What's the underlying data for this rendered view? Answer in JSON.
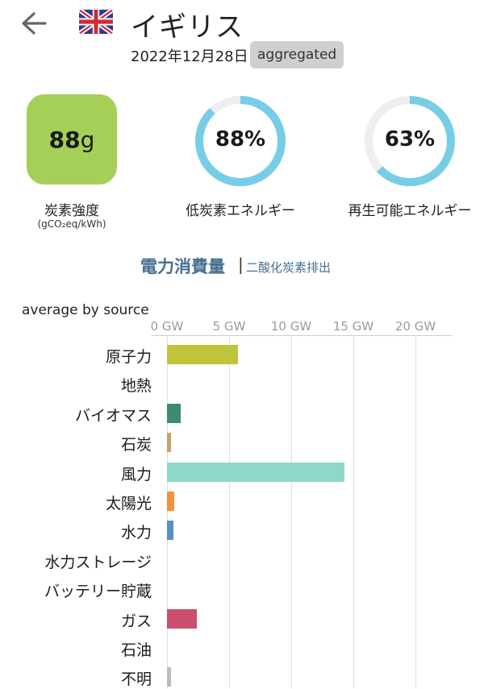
{
  "header": {
    "country": "イギリス",
    "date": "2022年12月28日",
    "badge": "aggregated"
  },
  "metrics": {
    "carbon_value": "88",
    "carbon_unit": "g",
    "carbon_label": "炭素強度",
    "carbon_unit_label": "(gCO₂eq/kWh)",
    "carbon_color": "#a6cf57",
    "low_carbon_percent": 88,
    "low_carbon_text": "88%",
    "low_carbon_label": "低炭素エネルギー",
    "renewable_percent": 63,
    "renewable_text": "63%",
    "renewable_label": "再生可能エネルギー",
    "ring_color": "#78cde6",
    "ring_track_color": "#eeeeee"
  },
  "tabs": {
    "active": "電力消費量",
    "separator": "|",
    "inactive": "二酸化炭素排出"
  },
  "chart_data": {
    "type": "bar",
    "orientation": "horizontal",
    "title": "average by source",
    "unit": "GW",
    "xlim": [
      0,
      23
    ],
    "ticks": [
      0,
      5,
      10,
      15,
      20
    ],
    "tick_labels": [
      "0 GW",
      "5 GW",
      "10 GW",
      "15 GW",
      "20 GW"
    ],
    "categories": [
      "原子力",
      "地熱",
      "バイオマス",
      "石炭",
      "風力",
      "太陽光",
      "水力",
      "水力ストレージ",
      "バッテリー貯蔵",
      "ガス",
      "石油",
      "不明"
    ],
    "values": [
      5.7,
      0,
      1.1,
      0.3,
      14.3,
      0.6,
      0.55,
      0,
      0,
      2.4,
      0,
      0.3
    ],
    "colors": [
      "#c0c43a",
      "#cccccc",
      "#3f8a74",
      "#c3a46a",
      "#8ed8c8",
      "#f2933a",
      "#5690c8",
      "#4b7ab5",
      "#a0a0d8",
      "#c94f6d",
      "#867d66",
      "#bbbbbb"
    ]
  }
}
